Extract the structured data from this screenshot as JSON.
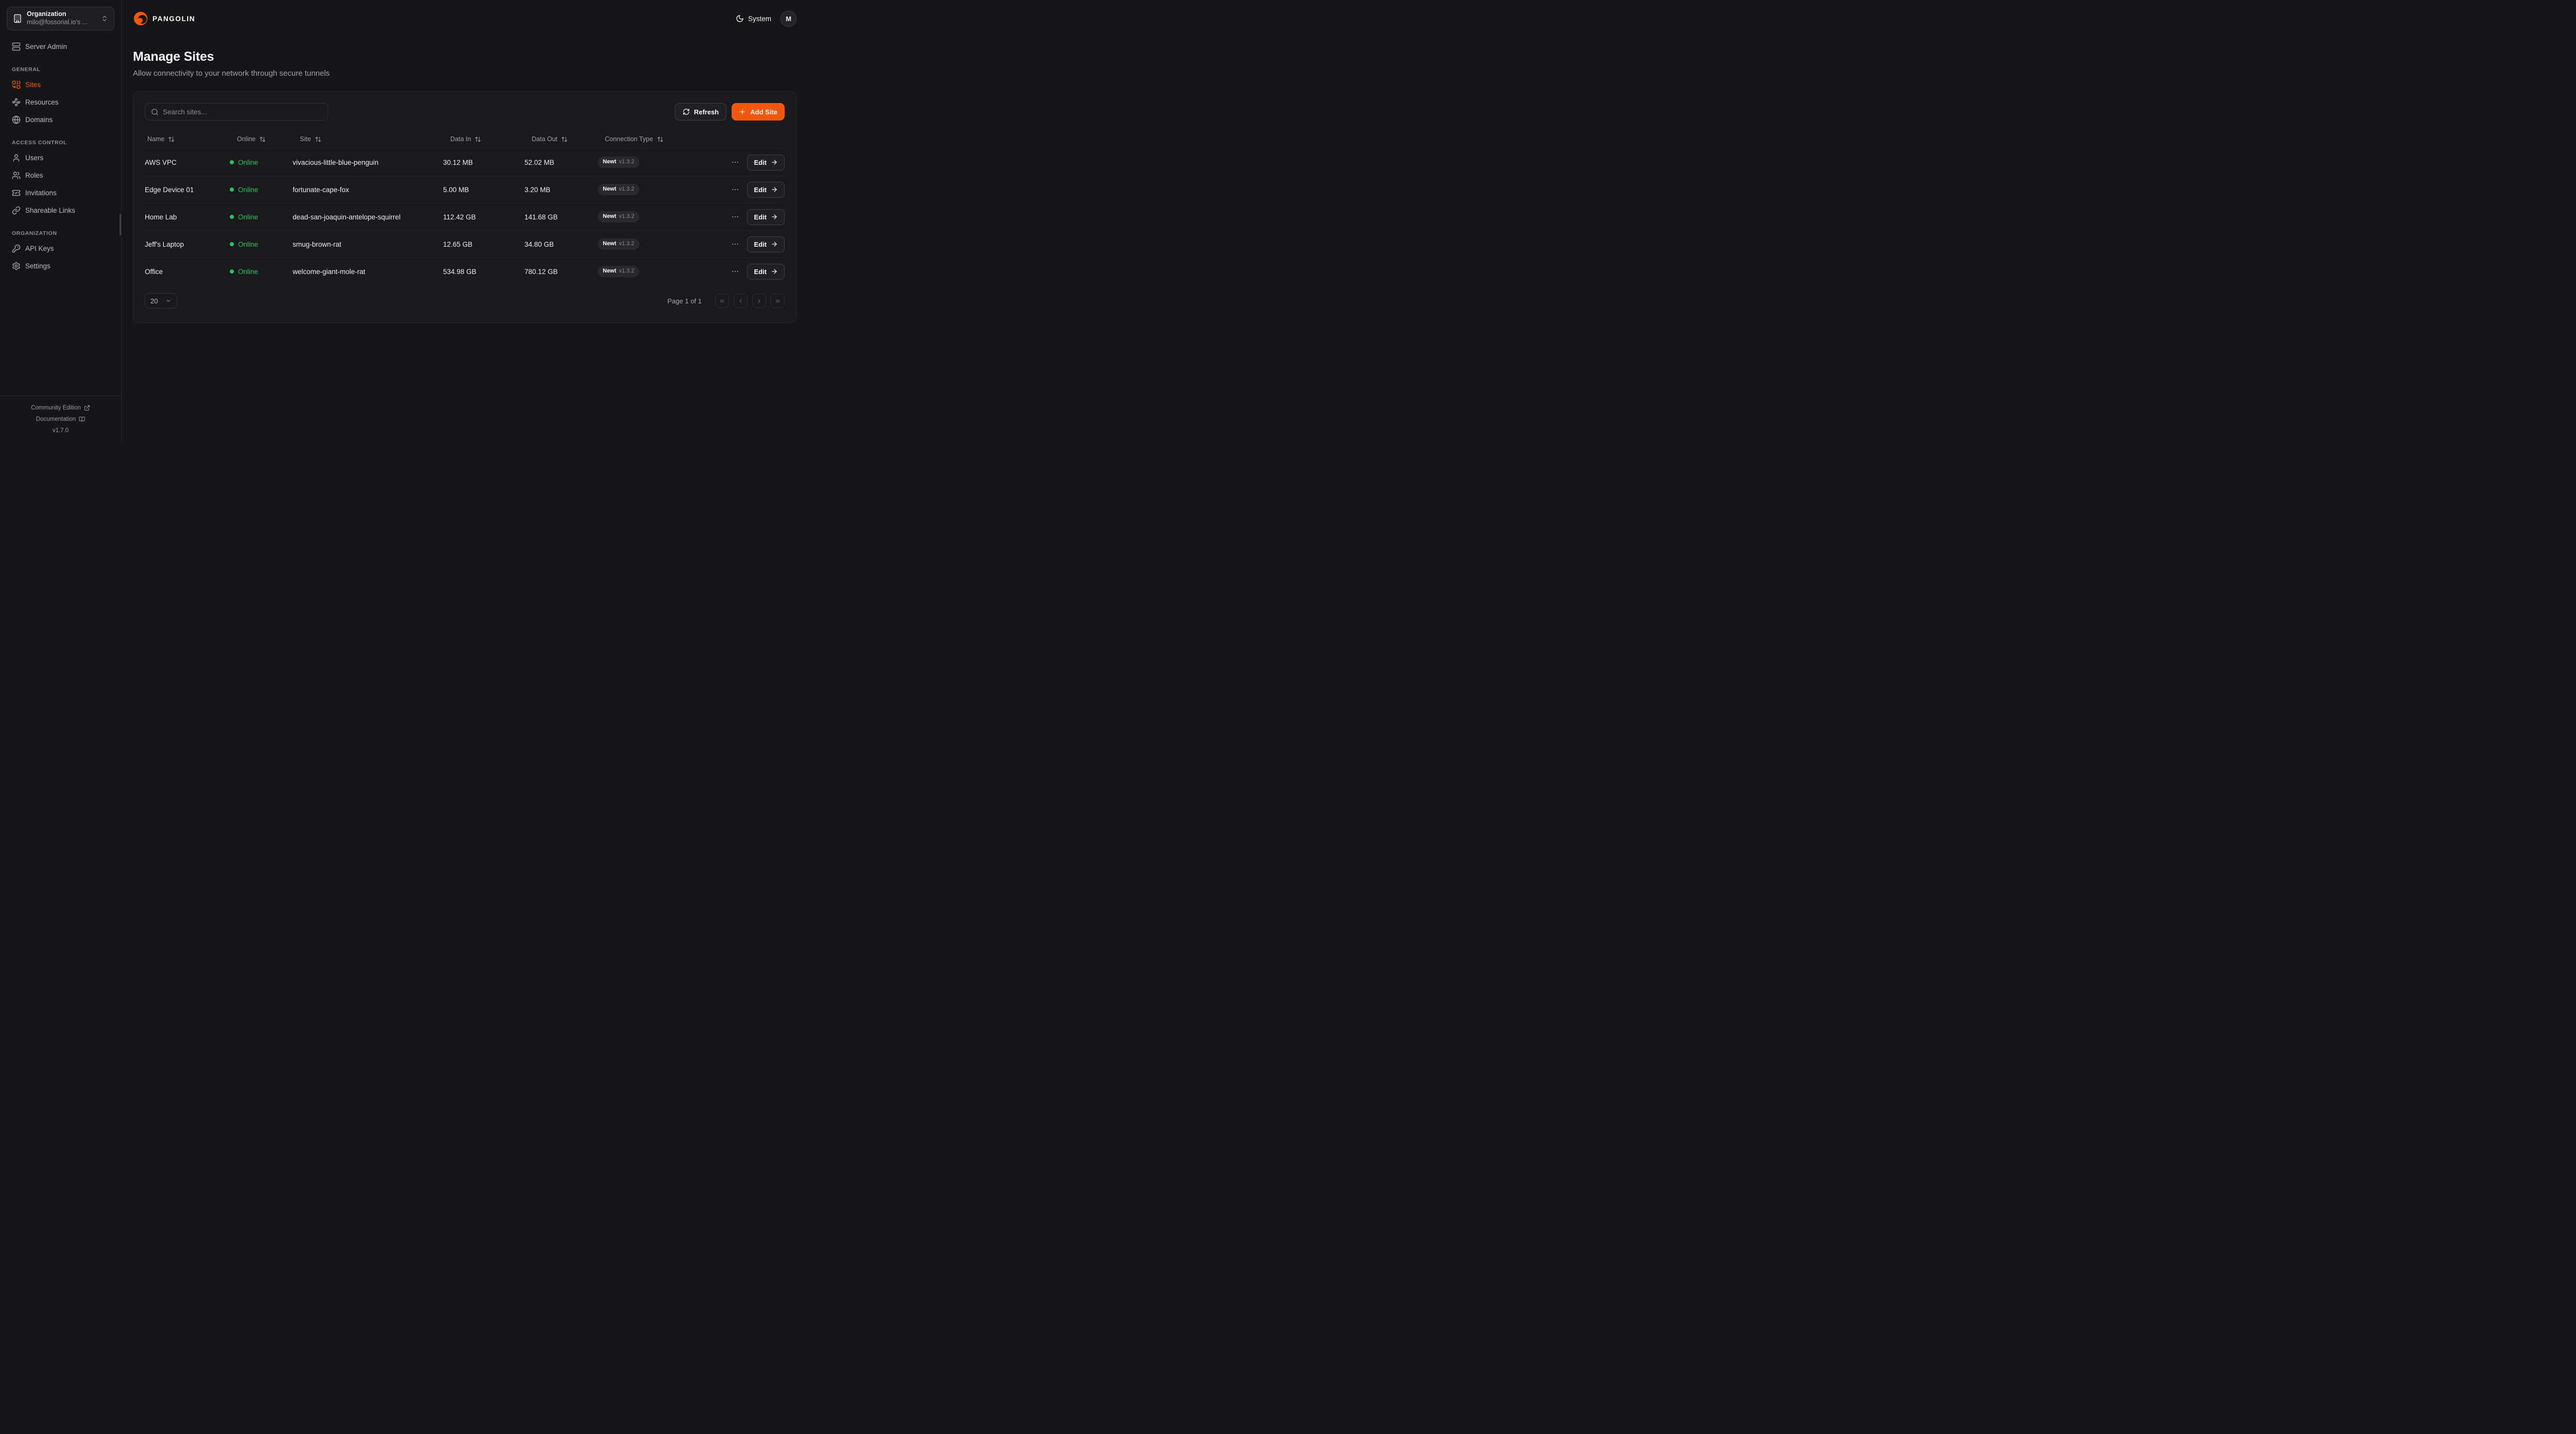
{
  "colors": {
    "accent": "#f1580e",
    "online_green": "#22c55e"
  },
  "sidebar": {
    "org_selector": {
      "title": "Organization",
      "subtitle": "milo@fossorial.io's ..."
    },
    "server_admin": {
      "label": "Server Admin",
      "icon": "server-icon"
    },
    "sections": [
      {
        "label": "GENERAL",
        "items": [
          {
            "label": "Sites",
            "icon": "combine-icon",
            "active": true
          },
          {
            "label": "Resources",
            "icon": "waypoints-icon",
            "active": false
          },
          {
            "label": "Domains",
            "icon": "globe-icon",
            "active": false
          }
        ]
      },
      {
        "label": "ACCESS CONTROL",
        "items": [
          {
            "label": "Users",
            "icon": "user-icon",
            "active": false
          },
          {
            "label": "Roles",
            "icon": "users-icon",
            "active": false
          },
          {
            "label": "Invitations",
            "icon": "ticket-check-icon",
            "active": false
          },
          {
            "label": "Shareable Links",
            "icon": "link-icon",
            "active": false
          }
        ]
      },
      {
        "label": "ORGANIZATION",
        "items": [
          {
            "label": "API Keys",
            "icon": "key-round-icon",
            "active": false
          },
          {
            "label": "Settings",
            "icon": "gear-icon",
            "active": false
          }
        ]
      }
    ],
    "footer": {
      "community": "Community Edition",
      "documentation": "Documentation",
      "version": "v1.7.0"
    }
  },
  "header": {
    "brand": "PANGOLIN",
    "theme_label": "System",
    "avatar_initial": "M"
  },
  "page": {
    "title": "Manage Sites",
    "subtitle": "Allow connectivity to your network through secure tunnels"
  },
  "toolbar": {
    "search_placeholder": "Search sites...",
    "refresh_label": "Refresh",
    "add_site_label": "Add Site"
  },
  "table": {
    "columns": [
      "Name",
      "Online",
      "Site",
      "Data In",
      "Data Out",
      "Connection Type"
    ],
    "rows": [
      {
        "name": "AWS VPC",
        "status": "Online",
        "site": "vivacious-little-blue-penguin",
        "data_in": "30.12 MB",
        "data_out": "52.02 MB",
        "conn_name": "Newt",
        "conn_version": "v1.3.2",
        "edit_label": "Edit"
      },
      {
        "name": "Edge Device 01",
        "status": "Online",
        "site": "fortunate-cape-fox",
        "data_in": "5.00 MB",
        "data_out": "3.20 MB",
        "conn_name": "Newt",
        "conn_version": "v1.3.2",
        "edit_label": "Edit"
      },
      {
        "name": "Home Lab",
        "status": "Online",
        "site": "dead-san-joaquin-antelope-squirrel",
        "data_in": "112.42 GB",
        "data_out": "141.68 GB",
        "conn_name": "Newt",
        "conn_version": "v1.3.2",
        "edit_label": "Edit"
      },
      {
        "name": "Jeff's Laptop",
        "status": "Online",
        "site": "smug-brown-rat",
        "data_in": "12.65 GB",
        "data_out": "34.80 GB",
        "conn_name": "Newt",
        "conn_version": "v1.3.2",
        "edit_label": "Edit"
      },
      {
        "name": "Office",
        "status": "Online",
        "site": "welcome-giant-mole-rat",
        "data_in": "534.98 GB",
        "data_out": "780.12 GB",
        "conn_name": "Newt",
        "conn_version": "v1.3.2",
        "edit_label": "Edit"
      }
    ]
  },
  "pagination": {
    "page_size": "20",
    "page_info": "Page 1 of 1"
  }
}
